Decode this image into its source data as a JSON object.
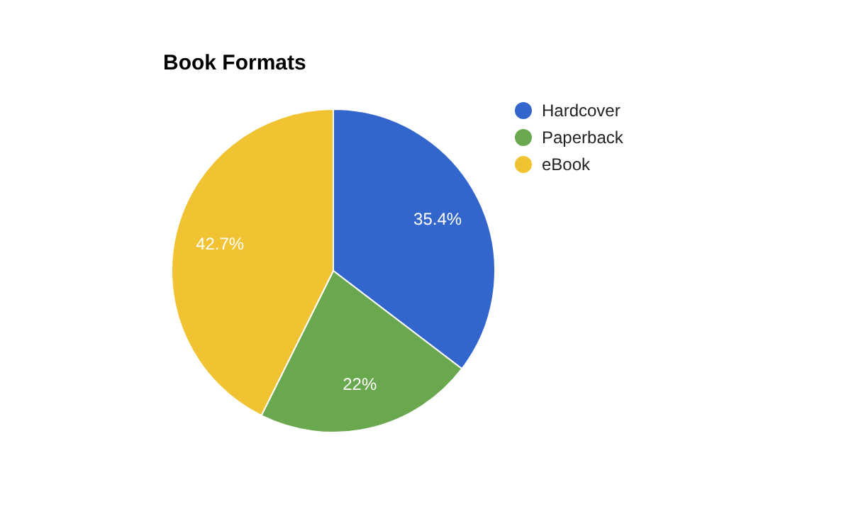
{
  "chart_data": {
    "type": "pie",
    "title": "Book Formats",
    "categories": [
      "Hardcover",
      "Paperback",
      "eBook"
    ],
    "values": [
      35.4,
      22,
      42.7
    ],
    "value_labels": [
      "35.4%",
      "22%",
      "42.7%"
    ],
    "colors": [
      "#3366cc",
      "#6aa84f",
      "#f1c232"
    ],
    "legend": "right"
  }
}
